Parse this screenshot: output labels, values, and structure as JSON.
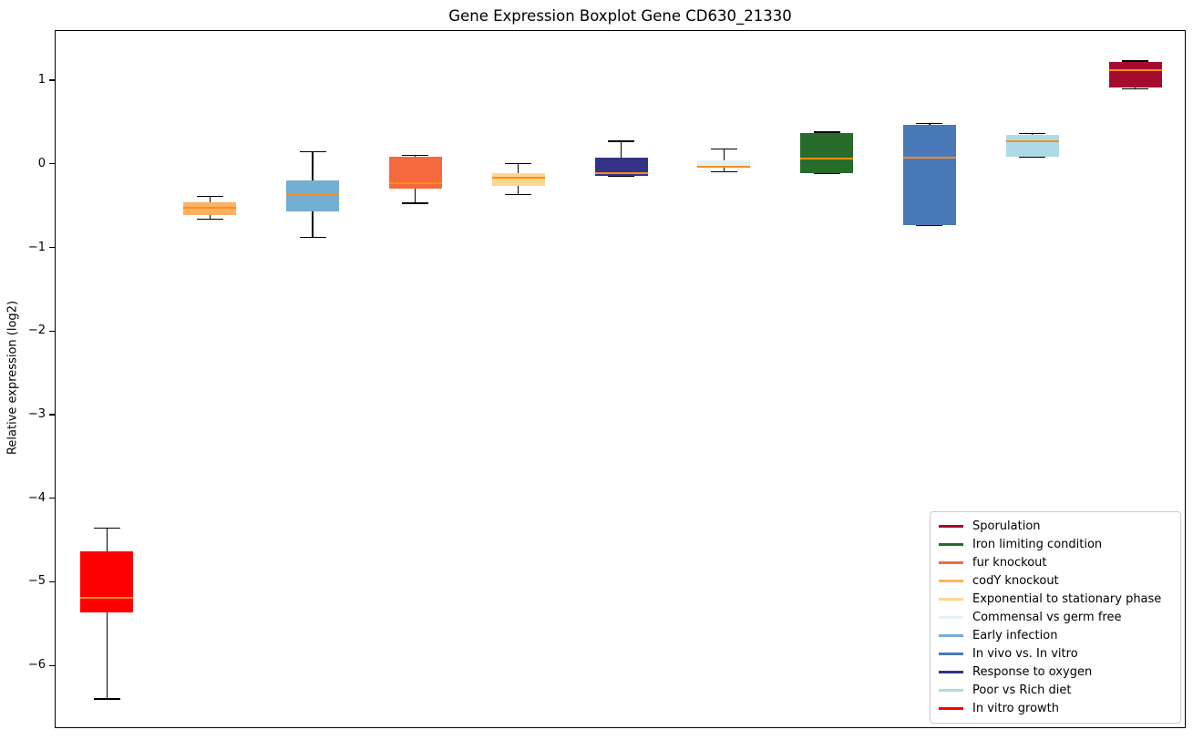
{
  "chart_data": {
    "type": "boxplot",
    "title": "Gene Expression Boxplot Gene CD630_21330",
    "ylabel": "Relative expression (log2)",
    "xlabel": "",
    "ylim": [
      -6.75,
      1.6
    ],
    "yticks": [
      1,
      0,
      -1,
      -2,
      -3,
      -4,
      -5,
      -6
    ],
    "ytick_labels": [
      "1",
      "0",
      "−1",
      "−2",
      "−3",
      "−4",
      "−5",
      "−6"
    ],
    "xtick_labels": [],
    "grid": false,
    "median_color": "#ff8c1a",
    "whisker_color": "#000000",
    "legend_position": "lower right",
    "boxes": [
      {
        "label": "In vitro growth",
        "color": "#ff0000",
        "whisker_low": -6.39,
        "q1": -5.36,
        "median": -5.18,
        "q3": -4.62,
        "whisker_high": -4.35
      },
      {
        "label": "codY knockout",
        "color": "#fdb163",
        "whisker_low": -0.65,
        "q1": -0.6,
        "median": -0.52,
        "q3": -0.45,
        "whisker_high": -0.38
      },
      {
        "label": "Early infection",
        "color": "#74aed3",
        "whisker_low": -0.87,
        "q1": -0.56,
        "median": -0.35,
        "q3": -0.19,
        "whisker_high": 0.16
      },
      {
        "label": "fur knockout",
        "color": "#f4693e",
        "whisker_low": -0.46,
        "q1": -0.29,
        "median": -0.22,
        "q3": 0.1,
        "whisker_high": 0.11
      },
      {
        "label": "Exponential to stationary phase",
        "color": "#fcd78e",
        "whisker_low": -0.36,
        "q1": -0.25,
        "median": -0.16,
        "q3": -0.1,
        "whisker_high": 0.01
      },
      {
        "label": "Response to oxygen",
        "color": "#333388",
        "whisker_low": -0.14,
        "q1": -0.13,
        "median": -0.1,
        "q3": 0.09,
        "whisker_high": 0.28
      },
      {
        "label": "Commensal vs germ free",
        "color": "#e2f3f8",
        "whisker_low": -0.08,
        "q1": -0.04,
        "median": -0.02,
        "q3": 0.05,
        "whisker_high": 0.19
      },
      {
        "label": "Iron limiting condition",
        "color": "#276c2a",
        "whisker_low": -0.11,
        "q1": -0.1,
        "median": 0.07,
        "q3": 0.38,
        "whisker_high": 0.39
      },
      {
        "label": "In vivo vs. In vitro",
        "color": "#4a79ba",
        "whisker_low": -0.73,
        "q1": -0.72,
        "median": 0.09,
        "q3": 0.48,
        "whisker_high": 0.49
      },
      {
        "label": "Poor vs Rich diet",
        "color": "#aedae7",
        "whisker_low": 0.09,
        "q1": 0.1,
        "median": 0.28,
        "q3": 0.36,
        "whisker_high": 0.37
      },
      {
        "label": "Sporulation",
        "color": "#a50b2d",
        "whisker_low": 0.91,
        "q1": 0.92,
        "median": 1.13,
        "q3": 1.23,
        "whisker_high": 1.24
      }
    ],
    "legend_entries": [
      {
        "label": "Sporulation",
        "color": "#a50b2d"
      },
      {
        "label": "Iron limiting condition",
        "color": "#276c2a"
      },
      {
        "label": "fur knockout",
        "color": "#f4693e"
      },
      {
        "label": "codY knockout",
        "color": "#fdb163"
      },
      {
        "label": "Exponential to stationary phase",
        "color": "#fcd78e"
      },
      {
        "label": "Commensal vs germ free",
        "color": "#e2f3f8"
      },
      {
        "label": "Early infection",
        "color": "#74aed3"
      },
      {
        "label": "In vivo vs. In vitro",
        "color": "#4a79ba"
      },
      {
        "label": "Response to oxygen",
        "color": "#333388"
      },
      {
        "label": "Poor vs Rich diet",
        "color": "#aedae7"
      },
      {
        "label": "In vitro growth",
        "color": "#ff0000"
      }
    ]
  }
}
